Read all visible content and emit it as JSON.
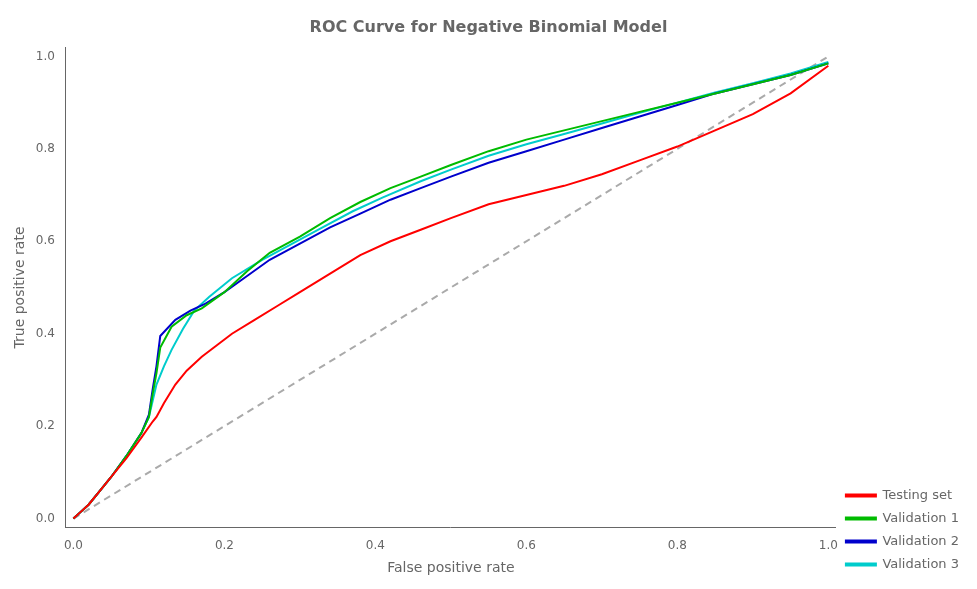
{
  "chart_data": {
    "type": "line",
    "title": "ROC Curve for Negative Binomial Model",
    "xlabel": "False positive rate",
    "ylabel": "True positive rate",
    "xlim": [
      -0.01,
      1.01
    ],
    "ylim": [
      -0.02,
      1.02
    ],
    "xticks": [
      {
        "value": 0.0,
        "label": "0.0"
      },
      {
        "value": 0.2,
        "label": "0.2"
      },
      {
        "value": 0.4,
        "label": "0.4"
      },
      {
        "value": 0.6,
        "label": "0.6"
      },
      {
        "value": 0.8,
        "label": "0.8"
      },
      {
        "value": 1.0,
        "label": "1.0"
      }
    ],
    "yticks": [
      {
        "value": 0.0,
        "label": "0.0"
      },
      {
        "value": 0.2,
        "label": "0.2"
      },
      {
        "value": 0.4,
        "label": "0.4"
      },
      {
        "value": 0.6,
        "label": "0.6"
      },
      {
        "value": 0.8,
        "label": "0.8"
      },
      {
        "value": 1.0,
        "label": "1.0"
      }
    ],
    "grid": false,
    "legend": "lower right",
    "series": [
      {
        "name": "Testing set",
        "color": "#ff0000",
        "line_style": "solid",
        "x": [
          0.0,
          0.01,
          0.02,
          0.035,
          0.05,
          0.07,
          0.09,
          0.105,
          0.11,
          0.12,
          0.135,
          0.15,
          0.17,
          0.19,
          0.21,
          0.24,
          0.27,
          0.3,
          0.34,
          0.38,
          0.42,
          0.46,
          0.5,
          0.55,
          0.6,
          0.65,
          0.7,
          0.75,
          0.8,
          0.85,
          0.9,
          0.95,
          1.0
        ],
        "values": [
          0.0,
          0.015,
          0.03,
          0.06,
          0.09,
          0.13,
          0.175,
          0.21,
          0.22,
          0.25,
          0.29,
          0.32,
          0.35,
          0.375,
          0.4,
          0.43,
          0.46,
          0.49,
          0.53,
          0.57,
          0.6,
          0.625,
          0.65,
          0.68,
          0.7,
          0.72,
          0.745,
          0.775,
          0.805,
          0.84,
          0.875,
          0.92,
          0.98
        ]
      },
      {
        "name": "Validation 1",
        "color": "#00bb00",
        "line_style": "solid",
        "x": [
          0.0,
          0.01,
          0.02,
          0.035,
          0.05,
          0.07,
          0.09,
          0.1,
          0.105,
          0.11,
          0.115,
          0.13,
          0.15,
          0.17,
          0.2,
          0.23,
          0.26,
          0.3,
          0.34,
          0.38,
          0.42,
          0.46,
          0.5,
          0.55,
          0.6,
          0.65,
          0.7,
          0.75,
          0.8,
          0.85,
          0.9,
          0.95,
          1.0
        ],
        "values": [
          0.0,
          0.015,
          0.03,
          0.06,
          0.09,
          0.135,
          0.185,
          0.22,
          0.27,
          0.315,
          0.37,
          0.415,
          0.44,
          0.455,
          0.49,
          0.535,
          0.575,
          0.61,
          0.65,
          0.685,
          0.715,
          0.74,
          0.765,
          0.795,
          0.82,
          0.84,
          0.86,
          0.88,
          0.9,
          0.92,
          0.94,
          0.96,
          0.985
        ]
      },
      {
        "name": "Validation 2",
        "color": "#0000cc",
        "line_style": "solid",
        "x": [
          0.0,
          0.01,
          0.02,
          0.035,
          0.05,
          0.07,
          0.09,
          0.1,
          0.105,
          0.11,
          0.115,
          0.135,
          0.155,
          0.175,
          0.2,
          0.23,
          0.26,
          0.3,
          0.34,
          0.38,
          0.42,
          0.46,
          0.5,
          0.55,
          0.6,
          0.65,
          0.7,
          0.75,
          0.8,
          0.85,
          0.9,
          0.95,
          1.0
        ],
        "values": [
          0.0,
          0.015,
          0.03,
          0.06,
          0.09,
          0.135,
          0.185,
          0.225,
          0.28,
          0.33,
          0.395,
          0.43,
          0.45,
          0.465,
          0.49,
          0.525,
          0.56,
          0.595,
          0.63,
          0.66,
          0.69,
          0.715,
          0.74,
          0.77,
          0.795,
          0.82,
          0.845,
          0.87,
          0.895,
          0.92,
          0.94,
          0.96,
          0.985
        ]
      },
      {
        "name": "Validation 3",
        "color": "#00cccc",
        "line_style": "solid",
        "x": [
          0.0,
          0.01,
          0.02,
          0.035,
          0.05,
          0.07,
          0.09,
          0.1,
          0.105,
          0.11,
          0.12,
          0.13,
          0.145,
          0.16,
          0.18,
          0.21,
          0.25,
          0.29,
          0.33,
          0.37,
          0.41,
          0.46,
          0.5,
          0.55,
          0.6,
          0.65,
          0.7,
          0.75,
          0.8,
          0.85,
          0.9,
          0.95,
          1.0
        ],
        "values": [
          0.0,
          0.015,
          0.03,
          0.06,
          0.09,
          0.135,
          0.185,
          0.22,
          0.255,
          0.29,
          0.33,
          0.365,
          0.41,
          0.45,
          0.48,
          0.52,
          0.56,
          0.595,
          0.63,
          0.665,
          0.695,
          0.73,
          0.755,
          0.785,
          0.81,
          0.832,
          0.855,
          0.878,
          0.9,
          0.922,
          0.942,
          0.963,
          0.988
        ]
      },
      {
        "color": "#aaaaaa",
        "line_style": "dashed",
        "x": [
          0,
          1
        ],
        "values": [
          0,
          1
        ]
      }
    ]
  }
}
